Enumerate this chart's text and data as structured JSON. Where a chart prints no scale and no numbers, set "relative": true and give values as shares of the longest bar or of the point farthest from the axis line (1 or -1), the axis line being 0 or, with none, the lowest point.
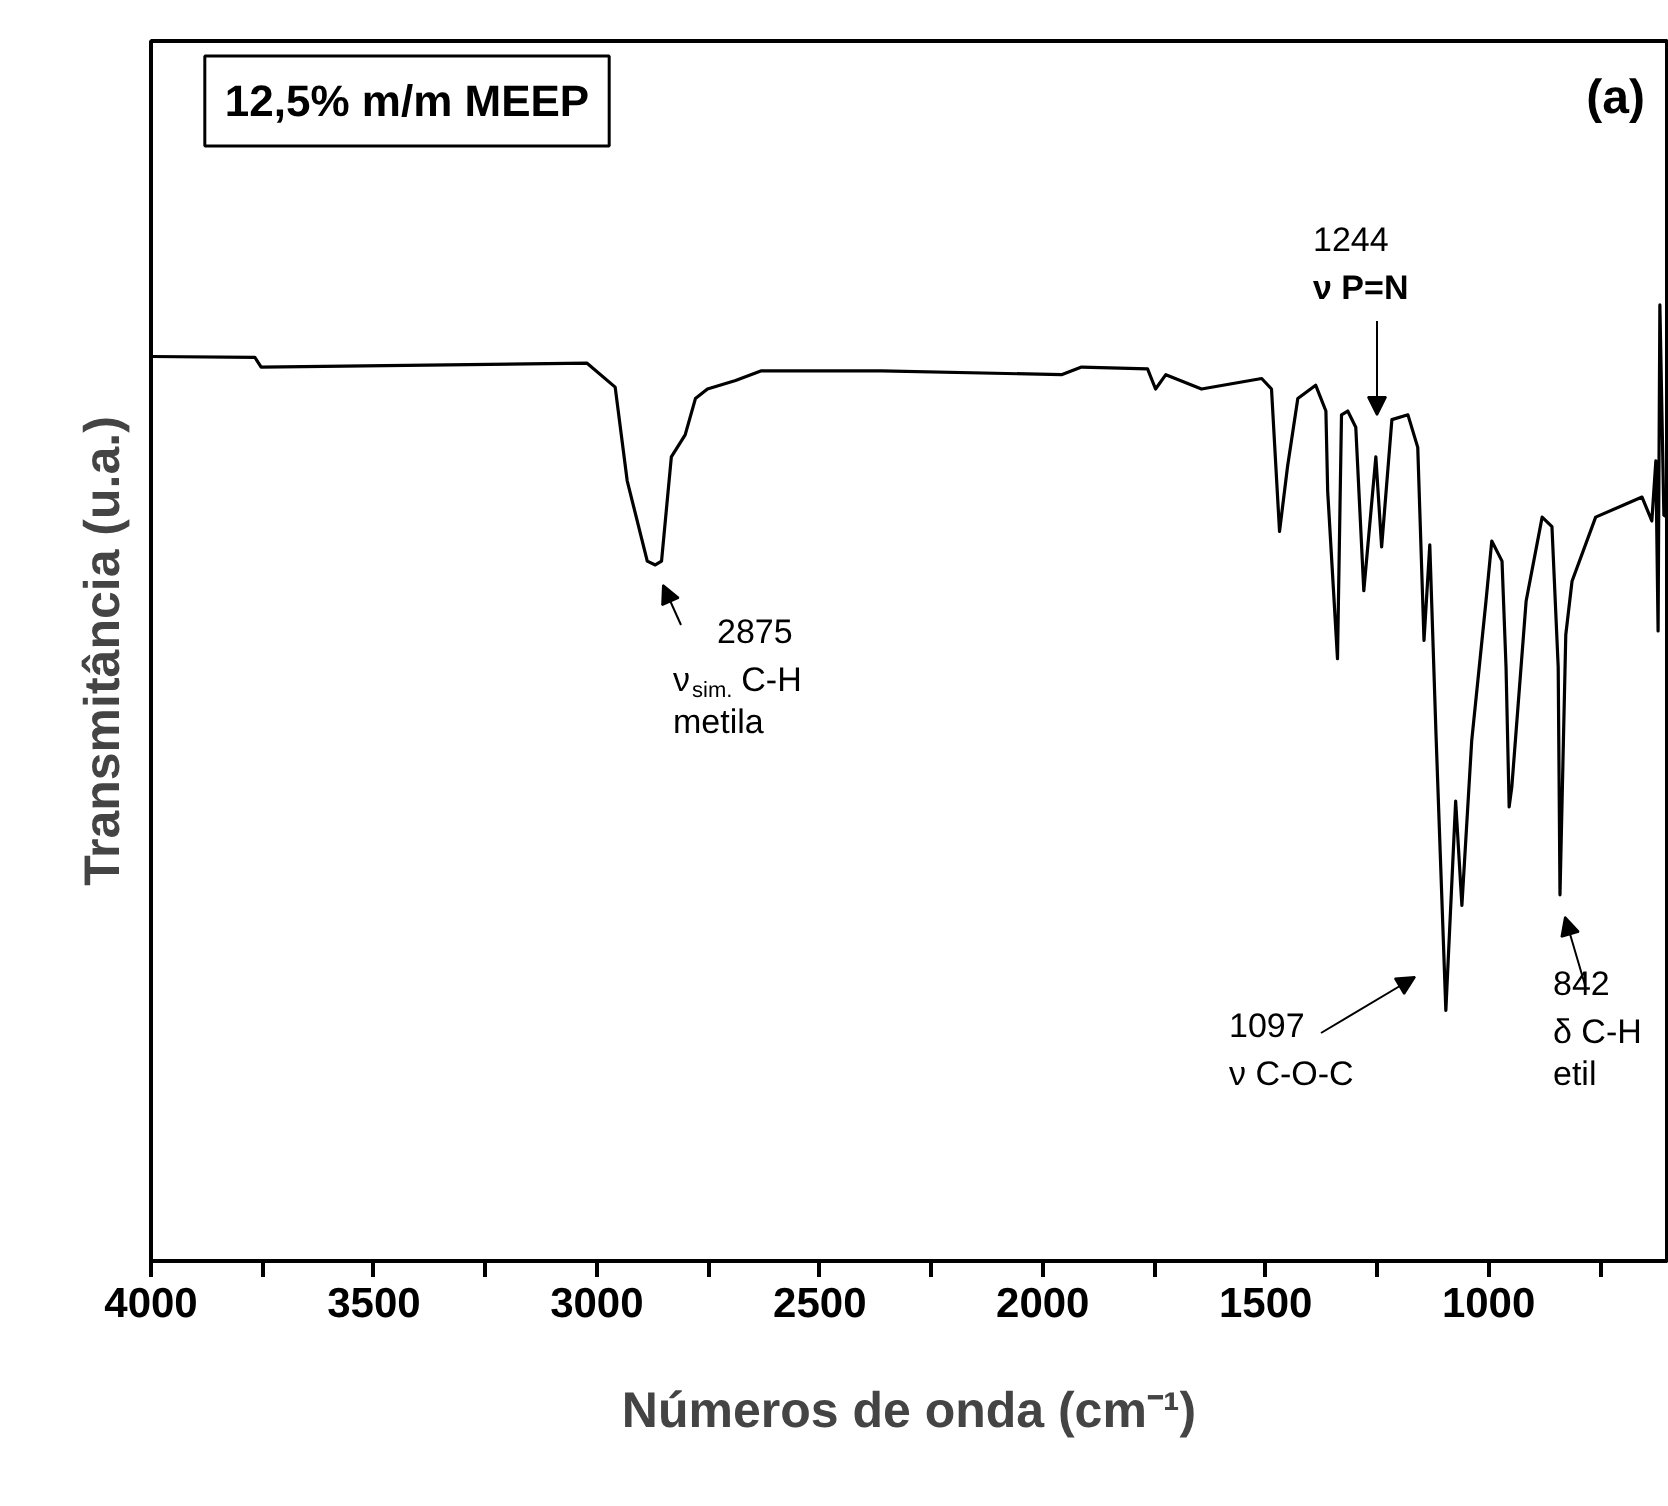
{
  "chart_data": {
    "type": "line",
    "relative": true,
    "title": "12,5% m/m MEEP",
    "xlabel": "Números de onda (cm⁻¹)",
    "ylabel": "Transmitância (u.a.)",
    "x": [
      4000,
      3767,
      3753,
      3022,
      2959,
      2932,
      2887,
      2869,
      2855,
      2833,
      2802,
      2779,
      2752,
      2689,
      2631,
      2362,
      1958,
      1913,
      1765,
      1747,
      1724,
      1644,
      1509,
      1487,
      1469,
      1451,
      1428,
      1388,
      1365,
      1361,
      1339,
      1330,
      1316,
      1298,
      1280,
      1253,
      1240,
      1217,
      1181,
      1159,
      1145,
      1132,
      1118,
      1096,
      1074,
      1060,
      1038,
      1006,
      993,
      970,
      961,
      954,
      948,
      916,
      880,
      858,
      844,
      840,
      827,
      813,
      760,
      656,
      634,
      625,
      620,
      616,
      607,
      600
    ],
    "series": [
      {
        "color": "#000000",
        "values": [
          0.946,
          0.945,
          0.935,
          0.939,
          0.914,
          0.816,
          0.732,
          0.728,
          0.732,
          0.841,
          0.864,
          0.902,
          0.912,
          0.921,
          0.931,
          0.931,
          0.927,
          0.935,
          0.933,
          0.912,
          0.927,
          0.912,
          0.923,
          0.912,
          0.763,
          0.831,
          0.902,
          0.916,
          0.889,
          0.805,
          0.63,
          0.885,
          0.889,
          0.872,
          0.701,
          0.841,
          0.747,
          0.88,
          0.885,
          0.851,
          0.649,
          0.749,
          0.55,
          0.262,
          0.481,
          0.372,
          0.544,
          0.69,
          0.753,
          0.732,
          0.621,
          0.475,
          0.496,
          0.69,
          0.778,
          0.768,
          0.621,
          0.383,
          0.655,
          0.711,
          0.778,
          0.799,
          0.774,
          0.837,
          0.659,
          1.0,
          0.78,
          0.778
        ]
      }
    ],
    "xlim": [
      4000,
      600
    ],
    "xticks": [
      4000,
      {
        "value": 3750,
        "label": null
      },
      3500,
      {
        "value": 3250,
        "label": null
      },
      3000,
      {
        "value": 2750,
        "label": null
      },
      2500,
      {
        "value": 2250,
        "label": null
      },
      2000,
      {
        "value": 1750,
        "label": null
      },
      1500,
      {
        "value": 1250,
        "label": null
      },
      1000,
      {
        "value": 750,
        "label": null
      }
    ],
    "tick_labels": "x",
    "grid": false,
    "marker": "none",
    "line_style": "solid",
    "annotations": [
      "(a)",
      "2875\nν$_{sim.}$C-H\nmetila",
      "1244\nν P=N",
      "1097\nν C-O-C",
      "842\nδ C-H\netil"
    ]
  }
}
